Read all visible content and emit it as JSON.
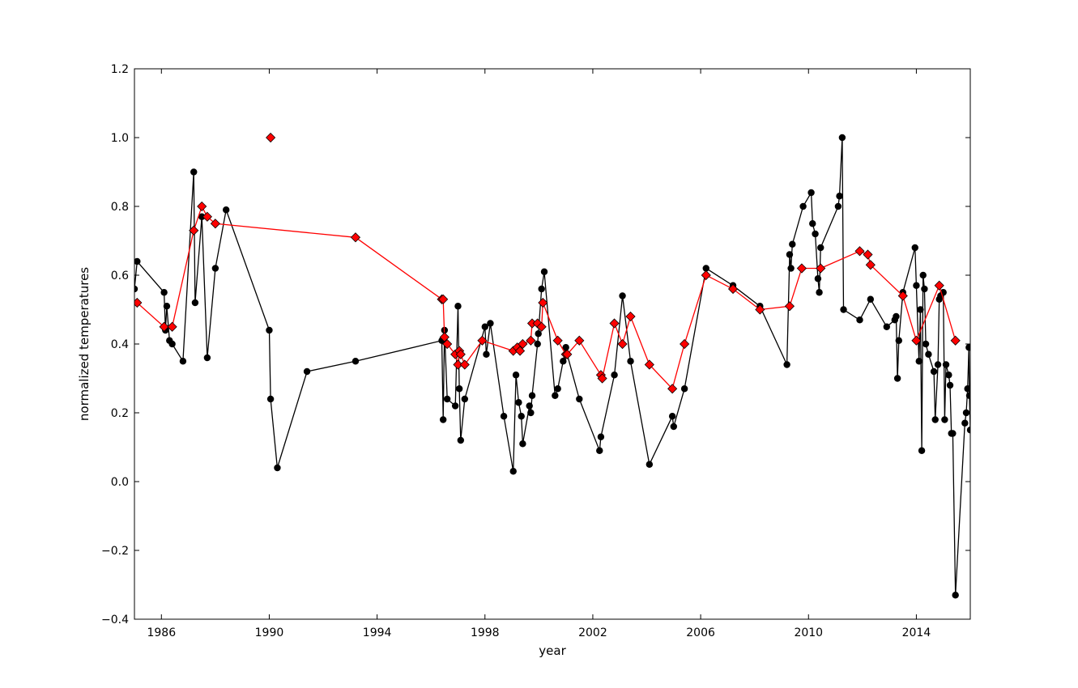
{
  "chart_data": {
    "type": "line",
    "title": "",
    "xlabel": "year",
    "ylabel": "normalized temperatures",
    "xlim": [
      1985.0,
      2016.0
    ],
    "ylim": [
      -0.4,
      1.2
    ],
    "x_ticks": [
      1986,
      1990,
      1994,
      1998,
      2002,
      2006,
      2010,
      2014
    ],
    "x_tick_labels": [
      "1986",
      "1990",
      "1994",
      "1998",
      "2002",
      "2006",
      "2010",
      "2014"
    ],
    "y_ticks": [
      -0.4,
      -0.2,
      0.0,
      0.2,
      0.4,
      0.6,
      0.8,
      1.0,
      1.2
    ],
    "y_tick_labels": [
      "−0.4",
      "−0.2",
      "0.0",
      "0.2",
      "0.4",
      "0.6",
      "0.8",
      "1.0",
      "1.2"
    ],
    "grid": false,
    "legend": false,
    "series": [
      {
        "color": "#000000",
        "marker": "circle",
        "points": [
          [
            1985.0,
            0.56
          ],
          [
            1985.1,
            0.64
          ],
          [
            1986.1,
            0.55
          ],
          [
            1986.15,
            0.44
          ],
          [
            1986.2,
            0.51
          ],
          [
            1986.3,
            0.41
          ],
          [
            1986.4,
            0.4
          ],
          [
            1986.8,
            0.35
          ],
          [
            1987.2,
            0.9
          ],
          [
            1987.25,
            0.52
          ],
          [
            1987.5,
            0.77
          ],
          [
            1987.7,
            0.36
          ],
          [
            1988.0,
            0.62
          ],
          [
            1988.4,
            0.79
          ],
          [
            1990.0,
            0.44
          ],
          [
            1990.05,
            0.24
          ],
          [
            1990.3,
            0.04
          ],
          [
            1991.4,
            0.32
          ],
          [
            1993.2,
            0.35
          ],
          [
            1996.4,
            0.41
          ],
          [
            1996.45,
            0.18
          ],
          [
            1996.5,
            0.44
          ],
          [
            1996.6,
            0.24
          ],
          [
            1996.9,
            0.22
          ],
          [
            1997.0,
            0.51
          ],
          [
            1997.05,
            0.27
          ],
          [
            1997.1,
            0.12
          ],
          [
            1997.25,
            0.24
          ],
          [
            1998.0,
            0.45
          ],
          [
            1998.05,
            0.37
          ],
          [
            1998.2,
            0.46
          ],
          [
            1998.7,
            0.19
          ],
          [
            1999.05,
            0.03
          ],
          [
            1999.15,
            0.31
          ],
          [
            1999.25,
            0.23
          ],
          [
            1999.35,
            0.19
          ],
          [
            1999.4,
            0.11
          ],
          [
            1999.65,
            0.22
          ],
          [
            1999.7,
            0.2
          ],
          [
            1999.75,
            0.25
          ],
          [
            1999.95,
            0.4
          ],
          [
            1999.98,
            0.43
          ],
          [
            2000.1,
            0.56
          ],
          [
            2000.2,
            0.61
          ],
          [
            2000.6,
            0.25
          ],
          [
            2000.7,
            0.27
          ],
          [
            2000.9,
            0.35
          ],
          [
            2001.0,
            0.39
          ],
          [
            2001.05,
            0.37
          ],
          [
            2001.5,
            0.24
          ],
          [
            2002.25,
            0.09
          ],
          [
            2002.3,
            0.13
          ],
          [
            2002.8,
            0.31
          ],
          [
            2003.1,
            0.54
          ],
          [
            2003.4,
            0.35
          ],
          [
            2004.1,
            0.05
          ],
          [
            2004.95,
            0.19
          ],
          [
            2005.0,
            0.16
          ],
          [
            2005.4,
            0.27
          ],
          [
            2006.2,
            0.62
          ],
          [
            2007.2,
            0.57
          ],
          [
            2008.2,
            0.51
          ],
          [
            2009.2,
            0.34
          ],
          [
            2009.3,
            0.66
          ],
          [
            2009.35,
            0.62
          ],
          [
            2009.4,
            0.69
          ],
          [
            2009.8,
            0.8
          ],
          [
            2010.1,
            0.84
          ],
          [
            2010.15,
            0.75
          ],
          [
            2010.25,
            0.72
          ],
          [
            2010.35,
            0.59
          ],
          [
            2010.4,
            0.55
          ],
          [
            2010.45,
            0.68
          ],
          [
            2011.1,
            0.8
          ],
          [
            2011.15,
            0.83
          ],
          [
            2011.25,
            1.0
          ],
          [
            2011.3,
            0.5
          ],
          [
            2011.9,
            0.47
          ],
          [
            2012.3,
            0.53
          ],
          [
            2012.9,
            0.45
          ],
          [
            2013.2,
            0.47
          ],
          [
            2013.25,
            0.48
          ],
          [
            2013.3,
            0.3
          ],
          [
            2013.35,
            0.41
          ],
          [
            2013.5,
            0.55
          ],
          [
            2013.95,
            0.68
          ],
          [
            2014.0,
            0.57
          ],
          [
            2014.1,
            0.35
          ],
          [
            2014.15,
            0.5
          ],
          [
            2014.2,
            0.09
          ],
          [
            2014.25,
            0.6
          ],
          [
            2014.3,
            0.56
          ],
          [
            2014.35,
            0.4
          ],
          [
            2014.45,
            0.37
          ],
          [
            2014.65,
            0.32
          ],
          [
            2014.7,
            0.18
          ],
          [
            2014.8,
            0.34
          ],
          [
            2014.85,
            0.53
          ],
          [
            2014.9,
            0.54
          ],
          [
            2015.0,
            0.55
          ],
          [
            2015.05,
            0.18
          ],
          [
            2015.1,
            0.34
          ],
          [
            2015.2,
            0.31
          ],
          [
            2015.25,
            0.28
          ],
          [
            2015.3,
            0.14
          ],
          [
            2015.35,
            0.14
          ],
          [
            2015.45,
            -0.33
          ],
          [
            2015.8,
            0.17
          ],
          [
            2015.85,
            0.2
          ],
          [
            2015.9,
            0.27
          ],
          [
            2015.95,
            0.39
          ],
          [
            2015.97,
            0.25
          ],
          [
            2016.0,
            0.15
          ]
        ]
      },
      {
        "color": "#ff0000",
        "marker": "diamond",
        "points": [
          [
            1985.1,
            0.52
          ],
          [
            1986.1,
            0.45
          ],
          [
            1986.4,
            0.45
          ],
          [
            1987.2,
            0.73
          ],
          [
            1987.5,
            0.8
          ],
          [
            1987.7,
            0.77
          ],
          [
            1988.0,
            0.75
          ],
          [
            1993.2,
            0.71
          ],
          [
            1996.4,
            0.53
          ],
          [
            1996.45,
            0.53
          ],
          [
            1996.5,
            0.42
          ],
          [
            1996.6,
            0.4
          ],
          [
            1996.9,
            0.37
          ],
          [
            1997.0,
            0.34
          ],
          [
            1997.05,
            0.38
          ],
          [
            1997.1,
            0.37
          ],
          [
            1997.25,
            0.34
          ],
          [
            1997.9,
            0.41
          ],
          [
            1999.05,
            0.38
          ],
          [
            1999.2,
            0.39
          ],
          [
            1999.3,
            0.38
          ],
          [
            1999.4,
            0.4
          ],
          [
            1999.7,
            0.41
          ],
          [
            1999.75,
            0.46
          ],
          [
            1999.95,
            0.46
          ],
          [
            2000.1,
            0.45
          ],
          [
            2000.15,
            0.52
          ],
          [
            2000.7,
            0.41
          ],
          [
            2001.0,
            0.37
          ],
          [
            2001.05,
            0.37
          ],
          [
            2001.5,
            0.41
          ],
          [
            2002.3,
            0.31
          ],
          [
            2002.35,
            0.3
          ],
          [
            2002.8,
            0.46
          ],
          [
            2003.1,
            0.4
          ],
          [
            2003.4,
            0.48
          ],
          [
            2004.1,
            0.34
          ],
          [
            2004.95,
            0.27
          ],
          [
            2005.4,
            0.4
          ],
          [
            2006.2,
            0.6
          ],
          [
            2007.2,
            0.56
          ],
          [
            2008.2,
            0.5
          ],
          [
            2009.3,
            0.51
          ],
          [
            2009.75,
            0.62
          ],
          [
            2010.45,
            0.62
          ],
          [
            2011.9,
            0.67
          ],
          [
            2012.2,
            0.66
          ],
          [
            2012.3,
            0.63
          ],
          [
            2013.5,
            0.54
          ],
          [
            2014.0,
            0.41
          ],
          [
            2014.85,
            0.57
          ],
          [
            2015.45,
            0.41
          ]
        ]
      },
      {
        "color": "#ff0000",
        "marker": "diamond",
        "points": [
          [
            1990.05,
            1.0
          ]
        ]
      }
    ]
  }
}
